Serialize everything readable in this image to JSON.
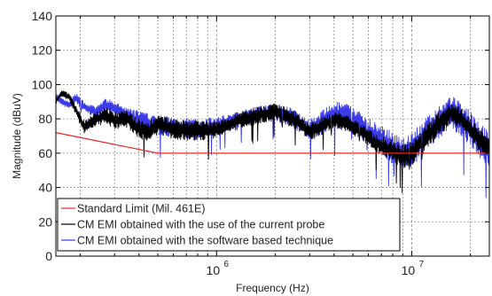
{
  "chart_data": {
    "type": "line",
    "xlabel": "Frequency (Hz)",
    "ylabel": "Magnitude (dBuV)",
    "x_scale": "log",
    "xlim": [
      150000,
      25000000
    ],
    "ylim": [
      0,
      140
    ],
    "y_ticks": [
      0,
      20,
      40,
      60,
      80,
      100,
      120,
      140
    ],
    "y_tick_labels": [
      "0",
      "20",
      "40",
      "60",
      "80",
      "100",
      "120",
      "140"
    ],
    "x_ticks": [
      1000000,
      10000000
    ],
    "x_tick_labels": [
      {
        "base": "10",
        "exp": "6"
      },
      {
        "base": "10",
        "exp": "7"
      }
    ],
    "grid": "major-minor",
    "legend_position": "bottom-left",
    "series": [
      {
        "name": "Standard Limit (Mil. 461E)",
        "color": "#e8262a",
        "style": "line",
        "x": [
          150000,
          500000,
          25000000
        ],
        "y": [
          72,
          60,
          60
        ]
      },
      {
        "name": "CM EMI obtained with the use of the current probe",
        "color": "#000000",
        "style": "noisy",
        "x": [
          150000,
          160000,
          175000,
          190000,
          210000,
          240000,
          270000,
          300000,
          350000,
          400000,
          450000,
          500000,
          600000,
          800000,
          1000000,
          1300000,
          1600000,
          2000000,
          2500000,
          3000000,
          3500000,
          4000000,
          4700000,
          5500000,
          6500000,
          7500000,
          9000000,
          10000000,
          12000000,
          14000000,
          16000000,
          18000000,
          20000000,
          22000000,
          25000000
        ],
        "y": [
          90,
          95,
          93,
          85,
          75,
          80,
          82,
          79,
          80,
          74,
          73,
          77,
          74,
          73,
          74,
          79,
          82,
          84,
          80,
          72,
          76,
          80,
          77,
          73,
          66,
          63,
          58,
          60,
          70,
          78,
          84,
          80,
          74,
          68,
          64
        ],
        "noise": [
          2,
          2,
          2,
          3,
          4,
          4,
          5,
          5,
          5,
          6,
          6,
          6,
          6,
          6,
          5,
          5,
          5,
          5,
          5,
          5,
          5,
          5,
          5,
          5,
          5,
          6,
          7,
          7,
          7,
          7,
          6,
          6,
          6,
          7,
          7
        ]
      },
      {
        "name": "CM EMI obtained with the software based technique",
        "color": "#3a3ae8",
        "style": "noisy",
        "x": [
          150000,
          160000,
          175000,
          190000,
          210000,
          240000,
          270000,
          300000,
          350000,
          400000,
          450000,
          500000,
          600000,
          800000,
          1000000,
          1300000,
          1600000,
          2000000,
          2500000,
          3000000,
          3500000,
          4000000,
          4700000,
          5500000,
          6500000,
          7500000,
          9000000,
          10000000,
          12000000,
          14000000,
          16000000,
          18000000,
          20000000,
          22000000,
          25000000
        ],
        "y": [
          93,
          90,
          88,
          92,
          87,
          84,
          88,
          86,
          82,
          80,
          77,
          76,
          75,
          74,
          76,
          80,
          82,
          84,
          80,
          74,
          78,
          82,
          81,
          76,
          70,
          65,
          60,
          62,
          71,
          79,
          84,
          80,
          74,
          67,
          63
        ],
        "noise": [
          2,
          2,
          2,
          3,
          3,
          3,
          4,
          4,
          4,
          5,
          6,
          6,
          6,
          6,
          5,
          5,
          5,
          5,
          6,
          6,
          7,
          8,
          8,
          8,
          8,
          9,
          10,
          10,
          10,
          10,
          10,
          10,
          10,
          11,
          11
        ]
      }
    ]
  }
}
